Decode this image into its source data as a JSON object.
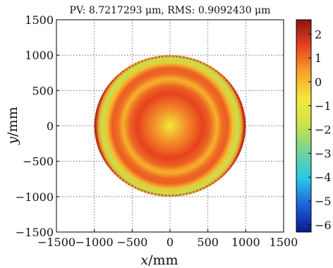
{
  "chart_data": {
    "type": "heatmap",
    "title": "PV: 8.7217293 μm, RMS: 0.9092430 μm",
    "xlabel": "x",
    "xlabel_unit": "/mm",
    "ylabel": "y",
    "ylabel_unit": "/mm",
    "xlim": [
      -1500,
      1500
    ],
    "ylim": [
      -1500,
      1500
    ],
    "x_ticks": [
      -1500,
      -1000,
      -500,
      0,
      500,
      1000,
      1500
    ],
    "y_ticks": [
      -1500,
      -1000,
      -500,
      0,
      500,
      1000,
      1500
    ],
    "x_tick_labels": [
      "−1500",
      "−1000",
      "−500",
      "0",
      "500",
      "1000",
      "1500"
    ],
    "y_tick_labels": [
      "−1500",
      "−1000",
      "−500",
      "0",
      "500",
      "1000",
      "1500"
    ],
    "grid": true,
    "grid_style": "dotted",
    "aperture_radius": 1000,
    "colorbar": {
      "placement": "right",
      "range": [
        -6.3,
        2.6
      ],
      "ticks": [
        2,
        1,
        0,
        -1,
        -2,
        -3,
        -4,
        -5,
        -6
      ],
      "tick_labels": [
        "2",
        "1",
        "0",
        "−1",
        "−2",
        "−3",
        "−4",
        "−5",
        "−6"
      ],
      "colormap": [
        "#0a1a8c",
        "#1f5fd9",
        "#27c9e6",
        "#6fd39a",
        "#c8e24a",
        "#f3e83a",
        "#f6a62b",
        "#e8431f",
        "#8b1515"
      ]
    },
    "surface_features": [
      {
        "kind": "center_value",
        "r": 0,
        "value": -0.8
      },
      {
        "kind": "inner_ring",
        "r": 430,
        "value": 1.5
      },
      {
        "kind": "mid_zone",
        "r": 620,
        "value": 0.2
      },
      {
        "kind": "outer_ring",
        "r": 760,
        "value": 1.2
      },
      {
        "kind": "low_ring",
        "r": 900,
        "value": -1.9
      },
      {
        "kind": "edge_ring",
        "r": 985,
        "value": 2.1
      }
    ]
  }
}
